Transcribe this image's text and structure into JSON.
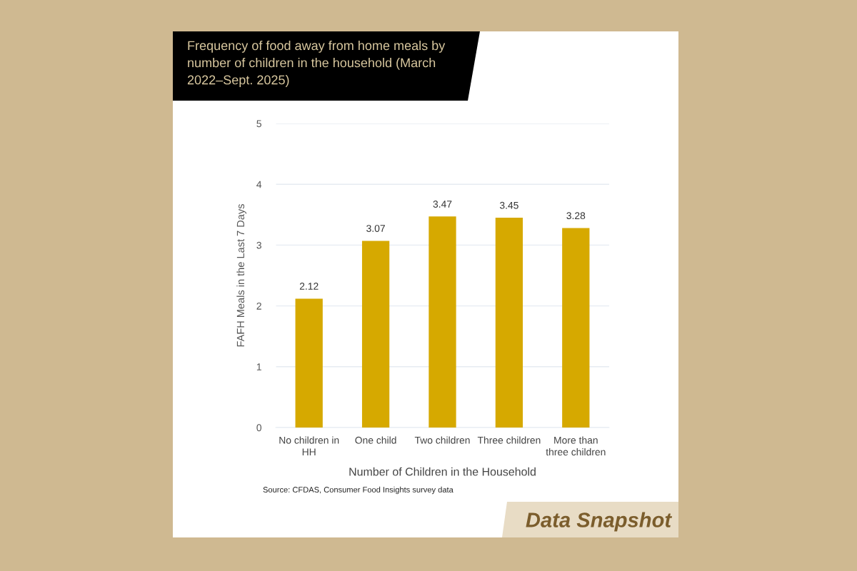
{
  "chart_data": {
    "type": "bar",
    "title": "Frequency of food away from home meals by number of children in the household (March 2022–Sept. 2025)",
    "xlabel": "Number of Children in the Household",
    "ylabel": "FAFH Meals in the Last 7 Days",
    "categories": [
      "No children in HH",
      "One child",
      "Two children",
      "Three children",
      "More than three children"
    ],
    "values": [
      2.12,
      3.07,
      3.47,
      3.45,
      3.28
    ],
    "color": "#d6a900",
    "ylim": [
      0,
      5
    ],
    "yticks": [
      0,
      1,
      2,
      3,
      4,
      5
    ],
    "grid": "y",
    "data_labels": true,
    "annotations": [
      "Source: CFDAS, Consumer Food Insights survey data",
      "Data Snapshot"
    ]
  }
}
